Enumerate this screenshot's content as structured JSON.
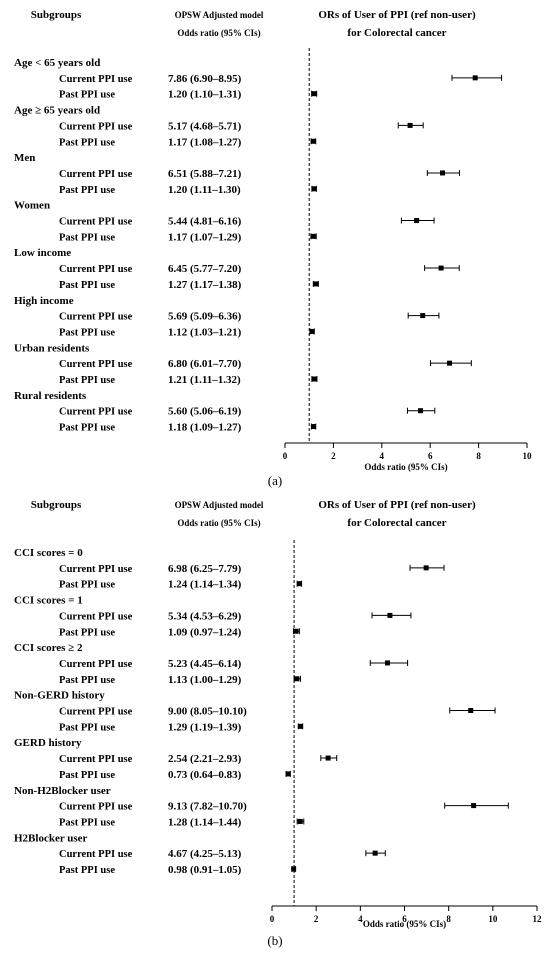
{
  "chart_data": [
    {
      "type": "forest",
      "panel_label": "(a)",
      "headers": {
        "subgroups": "Subgroups",
        "model_line1": "OPSW Adjusted model",
        "model_line2": "Odds ratio (95% CIs)",
        "plot_line1": "ORs of User of PPI (ref non-user)",
        "plot_line2": "for Colorectal cancer"
      },
      "xlabel": "Odds ratio (95% CIs)",
      "xlim": [
        0,
        10
      ],
      "xticks": [
        0,
        2,
        4,
        6,
        8,
        10
      ],
      "reference_line": 1,
      "groups": [
        {
          "label": "Age < 65 years old",
          "rows": [
            {
              "label": "Current PPI use",
              "text": "7.86 (6.90–8.95)",
              "or": 7.86,
              "lo": 6.9,
              "hi": 8.95
            },
            {
              "label": "Past PPI use",
              "text": "1.20 (1.10–1.31)",
              "or": 1.2,
              "lo": 1.1,
              "hi": 1.31
            }
          ]
        },
        {
          "label": "Age ≥ 65 years old",
          "rows": [
            {
              "label": "Current PPI use",
              "text": "5.17 (4.68–5.71)",
              "or": 5.17,
              "lo": 4.68,
              "hi": 5.71
            },
            {
              "label": "Past PPI use",
              "text": "1.17 (1.08–1.27)",
              "or": 1.17,
              "lo": 1.08,
              "hi": 1.27
            }
          ]
        },
        {
          "label": "Men",
          "rows": [
            {
              "label": "Current PPI use",
              "text": "6.51 (5.88–7.21)",
              "or": 6.51,
              "lo": 5.88,
              "hi": 7.21
            },
            {
              "label": "Past PPI use",
              "text": "1.20 (1.11–1.30)",
              "or": 1.2,
              "lo": 1.11,
              "hi": 1.3
            }
          ]
        },
        {
          "label": "Women",
          "rows": [
            {
              "label": "Current PPI use",
              "text": "5.44 (4.81–6.16)",
              "or": 5.44,
              "lo": 4.81,
              "hi": 6.16
            },
            {
              "label": "Past PPI use",
              "text": "1.17 (1.07–1.29)",
              "or": 1.17,
              "lo": 1.07,
              "hi": 1.29
            }
          ]
        },
        {
          "label": "Low income",
          "rows": [
            {
              "label": "Current PPI use",
              "text": "6.45 (5.77–7.20)",
              "or": 6.45,
              "lo": 5.77,
              "hi": 7.2
            },
            {
              "label": "Past PPI use",
              "text": "1.27 (1.17–1.38)",
              "or": 1.27,
              "lo": 1.17,
              "hi": 1.38
            }
          ]
        },
        {
          "label": "High income",
          "rows": [
            {
              "label": "Current PPI use",
              "text": "5.69 (5.09–6.36)",
              "or": 5.69,
              "lo": 5.09,
              "hi": 6.36
            },
            {
              "label": "Past PPI use",
              "text": "1.12 (1.03–1.21)",
              "or": 1.12,
              "lo": 1.03,
              "hi": 1.21
            }
          ]
        },
        {
          "label": "Urban residents",
          "rows": [
            {
              "label": "Current PPI use",
              "text": "6.80 (6.01–7.70)",
              "or": 6.8,
              "lo": 6.01,
              "hi": 7.7
            },
            {
              "label": "Past PPI use",
              "text": "1.21 (1.11–1.32)",
              "or": 1.21,
              "lo": 1.11,
              "hi": 1.32
            }
          ]
        },
        {
          "label": "Rural residents",
          "rows": [
            {
              "label": "Current PPI use",
              "text": "5.60 (5.06–6.19)",
              "or": 5.6,
              "lo": 5.06,
              "hi": 6.19
            },
            {
              "label": "Past PPI use",
              "text": "1.18 (1.09–1.27)",
              "or": 1.18,
              "lo": 1.09,
              "hi": 1.27
            }
          ]
        }
      ]
    },
    {
      "type": "forest",
      "panel_label": "(b)",
      "headers": {
        "subgroups": "Subgroups",
        "model_line1": "OPSW Adjusted model",
        "model_line2": "Odds ratio (95% CIs)",
        "plot_line1": "ORs of User of PPI (ref non-user)",
        "plot_line2": "for Colorectal cancer"
      },
      "xlabel": "Odds ratio (95% CIs)",
      "xlim": [
        0,
        12
      ],
      "xticks": [
        0,
        2,
        4,
        6,
        8,
        10,
        12
      ],
      "reference_line": 1,
      "groups": [
        {
          "label": "CCI scores = 0",
          "rows": [
            {
              "label": "Current PPI use",
              "text": "6.98 (6.25–7.79)",
              "or": 6.98,
              "lo": 6.25,
              "hi": 7.79
            },
            {
              "label": "Past PPI use",
              "text": "1.24 (1.14–1.34)",
              "or": 1.24,
              "lo": 1.14,
              "hi": 1.34
            }
          ]
        },
        {
          "label": "CCI scores = 1",
          "rows": [
            {
              "label": "Current PPI use",
              "text": "5.34 (4.53–6.29)",
              "or": 5.34,
              "lo": 4.53,
              "hi": 6.29
            },
            {
              "label": "Past PPI use",
              "text": "1.09 (0.97–1.24)",
              "or": 1.09,
              "lo": 0.97,
              "hi": 1.24
            }
          ]
        },
        {
          "label": "CCI scores ≥ 2",
          "rows": [
            {
              "label": "Current PPI use",
              "text": "5.23 (4.45–6.14)",
              "or": 5.23,
              "lo": 4.45,
              "hi": 6.14
            },
            {
              "label": "Past PPI use",
              "text": "1.13 (1.00–1.29)",
              "or": 1.13,
              "lo": 1.0,
              "hi": 1.29
            }
          ]
        },
        {
          "label": "Non-GERD history",
          "rows": [
            {
              "label": "Current PPI use",
              "text": "9.00 (8.05–10.10)",
              "or": 9.0,
              "lo": 8.05,
              "hi": 10.1
            },
            {
              "label": "Past PPI use",
              "text": "1.29 (1.19–1.39)",
              "or": 1.29,
              "lo": 1.19,
              "hi": 1.39
            }
          ]
        },
        {
          "label": "GERD history",
          "rows": [
            {
              "label": "Current PPI use",
              "text": "2.54 (2.21–2.93)",
              "or": 2.54,
              "lo": 2.21,
              "hi": 2.93
            },
            {
              "label": "Past PPI use",
              "text": "0.73 (0.64–0.83)",
              "or": 0.73,
              "lo": 0.64,
              "hi": 0.83
            }
          ]
        },
        {
          "label": "Non-H2Blocker user",
          "rows": [
            {
              "label": "Current PPI use",
              "text": "9.13 (7.82–10.70)",
              "or": 9.13,
              "lo": 7.82,
              "hi": 10.7
            },
            {
              "label": "Past PPI use",
              "text": "1.28 (1.14–1.44)",
              "or": 1.28,
              "lo": 1.14,
              "hi": 1.44
            }
          ]
        },
        {
          "label": "H2Blocker user",
          "rows": [
            {
              "label": "Current PPI use",
              "text": "4.67 (4.25–5.13)",
              "or": 4.67,
              "lo": 4.25,
              "hi": 5.13
            },
            {
              "label": "Past PPI use",
              "text": "0.98 (0.91–1.05)",
              "or": 0.98,
              "lo": 0.91,
              "hi": 1.05
            }
          ]
        }
      ]
    }
  ]
}
